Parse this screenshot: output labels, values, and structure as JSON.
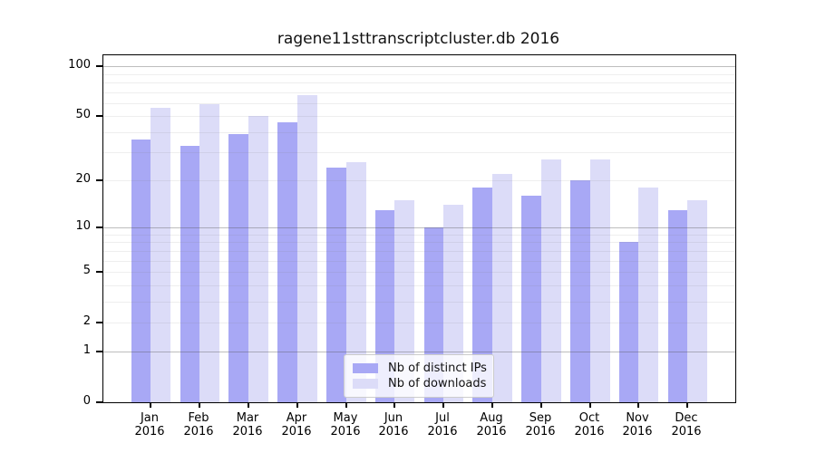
{
  "chart_data": {
    "type": "bar",
    "title": "ragene11sttranscriptcluster.db 2016",
    "xlabel": "",
    "ylabel": "",
    "categories": [
      "Jan",
      "Feb",
      "Mar",
      "Apr",
      "May",
      "Jun",
      "Jul",
      "Aug",
      "Sep",
      "Oct",
      "Nov",
      "Dec"
    ],
    "x_tick_year": "2016",
    "series": [
      {
        "name": "Nb of distinct IPs",
        "color": "#a8a8f5",
        "values": [
          36,
          33,
          39,
          46,
          24,
          13,
          10,
          18,
          16,
          20,
          8,
          13
        ]
      },
      {
        "name": "Nb of downloads",
        "color": "#dcdcf8",
        "values": [
          56,
          59,
          50,
          67,
          26,
          15,
          14,
          22,
          27,
          27,
          18,
          15
        ]
      }
    ],
    "y_axis": {
      "scale": "log10(1+v)",
      "ticks": [
        0,
        1,
        2,
        5,
        10,
        20,
        50,
        100
      ],
      "ylim": [
        0,
        117
      ]
    },
    "grid": {
      "major_lines": [
        1,
        10,
        100
      ],
      "minor_lines": [
        2,
        3,
        4,
        5,
        6,
        7,
        8,
        9,
        20,
        30,
        40,
        50,
        60,
        70,
        80,
        90
      ]
    },
    "legend": {
      "position": "bottom-center"
    }
  }
}
